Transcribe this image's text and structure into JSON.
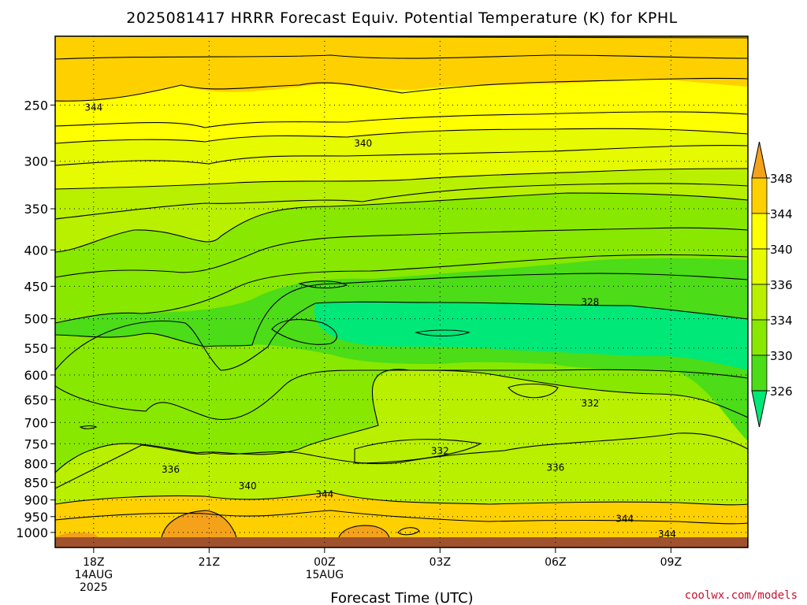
{
  "chart_data": {
    "type": "heatmap",
    "title": "2025081417 HRRR Forecast Equiv. Potential Temperature (K) for KPHL",
    "xlabel": "Forecast Time (UTC)",
    "credit": "coolwx.com/models",
    "x_ticks": [
      {
        "hour": 0,
        "lines": [
          "18Z",
          "14AUG",
          "2025"
        ]
      },
      {
        "hour": 3,
        "lines": [
          "21Z"
        ]
      },
      {
        "hour": 6,
        "lines": [
          "00Z",
          "15AUG"
        ]
      },
      {
        "hour": 9,
        "lines": [
          "03Z"
        ]
      },
      {
        "hour": 12,
        "lines": [
          "06Z"
        ]
      },
      {
        "hour": 15,
        "lines": [
          "09Z"
        ]
      }
    ],
    "xlim_hours": [
      -1,
      17
    ],
    "y_scale": "log-pressure (hPa), inverted",
    "ylim_hPa": [
      1050,
      200
    ],
    "y_ticks": [
      250,
      300,
      350,
      400,
      450,
      500,
      550,
      600,
      650,
      700,
      750,
      800,
      850,
      900,
      950,
      1000
    ],
    "grid": "dotted",
    "colorbar": {
      "labels": [
        "348",
        "344",
        "340",
        "336",
        "334",
        "330",
        "326"
      ],
      "bands": [
        {
          "color": "#f4a21a"
        },
        {
          "color": "#ffd000"
        },
        {
          "color": "#ffff00"
        },
        {
          "color": "#e6fa00"
        },
        {
          "color": "#b8f000"
        },
        {
          "color": "#88e800"
        },
        {
          "color": "#4cdc18"
        },
        {
          "color": "#00e878"
        }
      ]
    },
    "contour_labels": [
      {
        "text": "344",
        "hour": 0.0,
        "p": 252
      },
      {
        "text": "340",
        "hour": 7.0,
        "p": 283
      },
      {
        "text": "328",
        "hour": 12.9,
        "p": 474
      },
      {
        "text": "332",
        "hour": 12.9,
        "p": 658
      },
      {
        "text": "332",
        "hour": 9.0,
        "p": 768
      },
      {
        "text": "336",
        "hour": 2.0,
        "p": 815
      },
      {
        "text": "336",
        "hour": 12.0,
        "p": 810
      },
      {
        "text": "340",
        "hour": 4.0,
        "p": 860
      },
      {
        "text": "344",
        "hour": 6.0,
        "p": 884
      },
      {
        "text": "344",
        "hour": 13.8,
        "p": 957
      },
      {
        "text": "344",
        "hour": 14.9,
        "p": 1005
      }
    ]
  }
}
